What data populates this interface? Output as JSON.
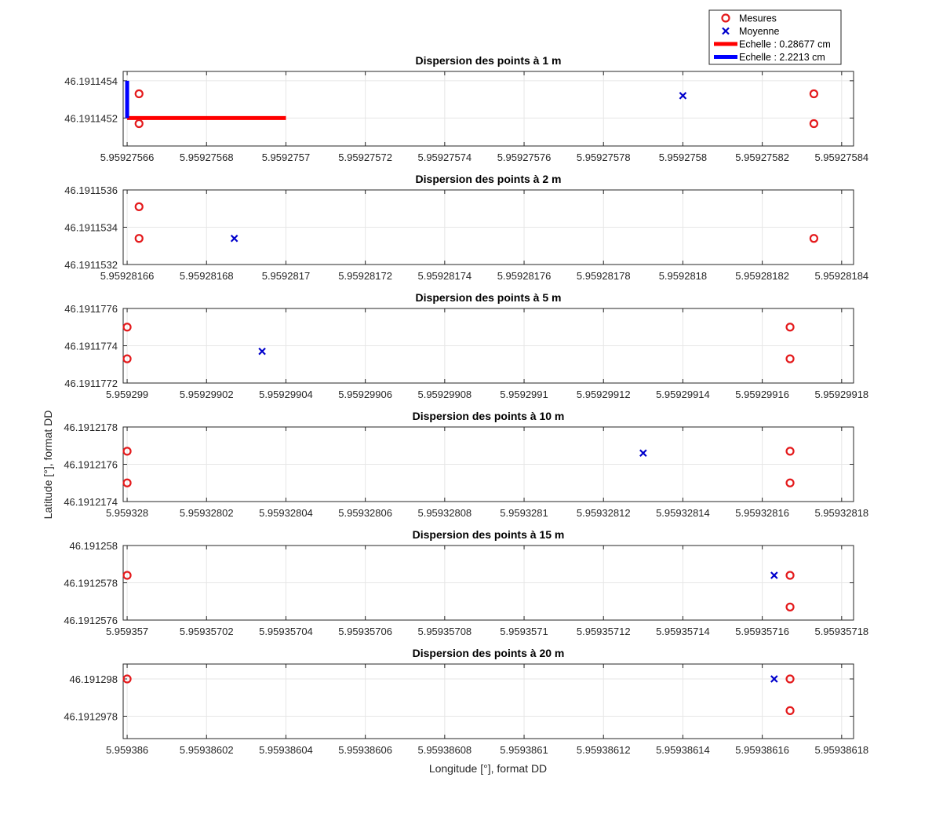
{
  "figure": {
    "xlabel": "Longitude [°], format DD",
    "ylabel": "Latitude [°], format DD"
  },
  "legend": {
    "placement": "top-right, above first subplot",
    "items": [
      {
        "label": "Mesures",
        "marker": "circle",
        "color": "#e41a1c"
      },
      {
        "label": "Moyenne",
        "marker": "x",
        "color": "#0000cc"
      },
      {
        "label": "Echelle : 0.28677 cm",
        "marker": "line",
        "color": "#ff0000"
      },
      {
        "label": "Echelle : 2.2213 cm",
        "marker": "line",
        "color": "#0000ff"
      }
    ]
  },
  "colors": {
    "mesures": "#e41a1c",
    "moyenne": "#0000cc",
    "scale_red": "#ff0000",
    "scale_blue": "#0000ff",
    "grid": "#e6e6e6"
  },
  "chart_data": [
    {
      "type": "scatter",
      "title": "Dispersion des points à 1 m",
      "grid": true,
      "xlim": [
        5.959275659,
        5.959275843
      ],
      "ylim": [
        46.19114505,
        46.19114545
      ],
      "xticks": [
        5.95927566,
        5.95927568,
        5.9592757,
        5.95927572,
        5.95927574,
        5.95927576,
        5.95927578,
        5.9592758,
        5.95927582,
        5.95927584
      ],
      "xtick_labels": [
        "5.95927566",
        "5.95927568",
        "5.9592757",
        "5.95927572",
        "5.95927574",
        "5.95927576",
        "5.95927578",
        "5.9592758",
        "5.95927582",
        "5.95927584"
      ],
      "yticks": [
        46.1911452,
        46.1911454
      ],
      "ytick_labels": [
        "46.1911452",
        "46.1911454"
      ],
      "series": [
        {
          "name": "Mesures",
          "marker": "circle",
          "points": [
            [
              5.959275663,
              46.19114533
            ],
            [
              5.959275663,
              46.19114517
            ],
            [
              5.959275833,
              46.19114533
            ],
            [
              5.959275833,
              46.19114517
            ]
          ]
        },
        {
          "name": "Moyenne",
          "marker": "x",
          "points": [
            [
              5.9592758,
              46.19114532
            ]
          ]
        }
      ],
      "scale_bars": [
        {
          "name": "Echelle : 0.28677 cm",
          "color": "#ff0000",
          "from": [
            5.95927566,
            46.1911452
          ],
          "to": [
            5.9592757,
            46.1911452
          ]
        },
        {
          "name": "Echelle : 2.2213 cm",
          "color": "#0000ff",
          "from": [
            5.95927566,
            46.1911452
          ],
          "to": [
            5.95927566,
            46.1911454
          ]
        }
      ]
    },
    {
      "type": "scatter",
      "title": "Dispersion des points à 2 m",
      "grid": true,
      "xlim": [
        5.959281659,
        5.959281843
      ],
      "ylim": [
        46.1911532,
        46.1911536
      ],
      "xticks": [
        5.95928166,
        5.95928168,
        5.9592817,
        5.95928172,
        5.95928174,
        5.95928176,
        5.95928178,
        5.9592818,
        5.95928182,
        5.95928184
      ],
      "xtick_labels": [
        "5.95928166",
        "5.95928168",
        "5.9592817",
        "5.95928172",
        "5.95928174",
        "5.95928176",
        "5.95928178",
        "5.9592818",
        "5.95928182",
        "5.95928184"
      ],
      "yticks": [
        46.1911532,
        46.1911534,
        46.1911536
      ],
      "ytick_labels": [
        "46.1911532",
        "46.1911534",
        "46.1911536"
      ],
      "series": [
        {
          "name": "Mesures",
          "marker": "circle",
          "points": [
            [
              5.959281663,
              46.19115351
            ],
            [
              5.959281663,
              46.19115334
            ],
            [
              5.959281833,
              46.19115334
            ]
          ]
        },
        {
          "name": "Moyenne",
          "marker": "x",
          "points": [
            [
              5.959281687,
              46.19115334
            ]
          ]
        }
      ]
    },
    {
      "type": "scatter",
      "title": "Dispersion des points à 5 m",
      "grid": true,
      "xlim": [
        5.959298999,
        5.959299183
      ],
      "ylim": [
        46.1911772,
        46.1911776
      ],
      "xticks": [
        5.959299,
        5.95929902,
        5.95929904,
        5.95929906,
        5.95929908,
        5.9592991,
        5.95929912,
        5.95929914,
        5.95929916,
        5.95929918
      ],
      "xtick_labels": [
        "5.959299",
        "5.95929902",
        "5.95929904",
        "5.95929906",
        "5.95929908",
        "5.9592991",
        "5.95929912",
        "5.95929914",
        "5.95929916",
        "5.95929918"
      ],
      "yticks": [
        46.1911772,
        46.1911774,
        46.1911776
      ],
      "ytick_labels": [
        "46.1911772",
        "46.1911774",
        "46.1911776"
      ],
      "series": [
        {
          "name": "Mesures",
          "marker": "circle",
          "points": [
            [
              5.959299,
              46.1911775
            ],
            [
              5.959299,
              46.19117733
            ],
            [
              5.959299167,
              46.1911775
            ],
            [
              5.959299167,
              46.19117733
            ]
          ]
        },
        {
          "name": "Moyenne",
          "marker": "x",
          "points": [
            [
              5.959299034,
              46.19117737
            ]
          ]
        }
      ]
    },
    {
      "type": "scatter",
      "title": "Dispersion des points à 10 m",
      "grid": true,
      "xlim": [
        5.959327999,
        5.959328183
      ],
      "ylim": [
        46.1912174,
        46.1912178
      ],
      "xticks": [
        5.959328,
        5.95932802,
        5.95932804,
        5.95932806,
        5.95932808,
        5.9593281,
        5.95932812,
        5.95932814,
        5.95932816,
        5.95932818
      ],
      "xtick_labels": [
        "5.959328",
        "5.95932802",
        "5.95932804",
        "5.95932806",
        "5.95932808",
        "5.9593281",
        "5.95932812",
        "5.95932814",
        "5.95932816",
        "5.95932818"
      ],
      "yticks": [
        46.1912174,
        46.1912176,
        46.1912178
      ],
      "ytick_labels": [
        "46.1912174",
        "46.1912176",
        "46.1912178"
      ],
      "series": [
        {
          "name": "Mesures",
          "marker": "circle",
          "points": [
            [
              5.959328,
              46.19121767
            ],
            [
              5.959328,
              46.1912175
            ],
            [
              5.959328167,
              46.19121767
            ],
            [
              5.959328167,
              46.1912175
            ]
          ]
        },
        {
          "name": "Moyenne",
          "marker": "x",
          "points": [
            [
              5.95932813,
              46.19121766
            ]
          ]
        }
      ]
    },
    {
      "type": "scatter",
      "title": "Dispersion des points à 15 m",
      "grid": true,
      "xlim": [
        5.959356999,
        5.959357183
      ],
      "ylim": [
        46.1912576,
        46.191258
      ],
      "xticks": [
        5.959357,
        5.95935702,
        5.95935704,
        5.95935706,
        5.95935708,
        5.9593571,
        5.95935712,
        5.95935714,
        5.95935716,
        5.95935718
      ],
      "xtick_labels": [
        "5.959357",
        "5.95935702",
        "5.95935704",
        "5.95935706",
        "5.95935708",
        "5.9593571",
        "5.95935712",
        "5.95935714",
        "5.95935716",
        "5.95935718"
      ],
      "yticks": [
        46.1912576,
        46.1912578,
        46.191258
      ],
      "ytick_labels": [
        "46.1912576",
        "46.1912578",
        "46.191258"
      ],
      "series": [
        {
          "name": "Mesures",
          "marker": "circle",
          "points": [
            [
              5.959357,
              46.19125784
            ],
            [
              5.959357167,
              46.19125784
            ],
            [
              5.959357167,
              46.19125767
            ]
          ]
        },
        {
          "name": "Moyenne",
          "marker": "x",
          "points": [
            [
              5.959357163,
              46.19125784
            ]
          ]
        }
      ]
    },
    {
      "type": "scatter",
      "title": "Dispersion des points à 20 m",
      "grid": true,
      "xlim": [
        5.959385999,
        5.959386183
      ],
      "ylim": [
        46.19129768,
        46.19129808
      ],
      "xticks": [
        5.959386,
        5.95938602,
        5.95938604,
        5.95938606,
        5.95938608,
        5.9593861,
        5.95938612,
        5.95938614,
        5.95938616,
        5.95938618
      ],
      "xtick_labels": [
        "5.959386",
        "5.95938602",
        "5.95938604",
        "5.95938606",
        "5.95938608",
        "5.9593861",
        "5.95938612",
        "5.95938614",
        "5.95938616",
        "5.95938618"
      ],
      "yticks": [
        46.1912978,
        46.191298
      ],
      "ytick_labels": [
        "46.1912978",
        "46.191298"
      ],
      "series": [
        {
          "name": "Mesures",
          "marker": "circle",
          "points": [
            [
              5.959386,
              46.191298
            ],
            [
              5.959386167,
              46.191298
            ],
            [
              5.959386167,
              46.19129783
            ]
          ]
        },
        {
          "name": "Moyenne",
          "marker": "x",
          "points": [
            [
              5.959386163,
              46.191298
            ]
          ]
        }
      ]
    }
  ]
}
